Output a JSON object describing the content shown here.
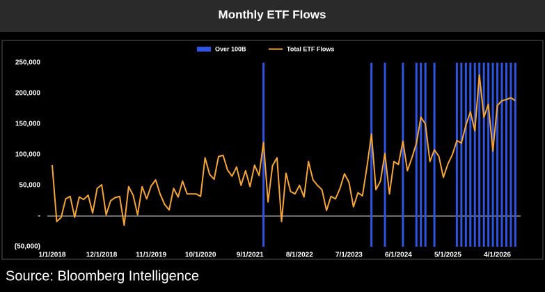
{
  "chart_data": {
    "type": "combo",
    "title": "Monthly ETF Flows",
    "source": "Source: Bloomberg Intelligence",
    "categories": [
      "1/1/2018",
      null,
      null,
      null,
      null,
      null,
      null,
      null,
      null,
      null,
      null,
      "12/1/2018",
      null,
      null,
      null,
      null,
      null,
      null,
      null,
      null,
      null,
      null,
      "11/1/2019",
      null,
      null,
      null,
      null,
      null,
      null,
      null,
      null,
      null,
      null,
      "10/1/2020",
      null,
      null,
      null,
      null,
      null,
      null,
      null,
      null,
      null,
      null,
      "9/1/2021",
      null,
      null,
      null,
      null,
      null,
      null,
      null,
      null,
      null,
      null,
      "8/1/2022",
      null,
      null,
      null,
      null,
      null,
      null,
      null,
      null,
      null,
      null,
      "7/1/2023",
      null,
      null,
      null,
      null,
      null,
      null,
      null,
      null,
      null,
      null,
      "6/1/2024",
      null,
      null,
      null,
      null,
      null,
      null,
      null,
      null,
      null,
      null,
      "5/1/2025",
      null,
      null,
      null,
      null,
      null,
      null,
      null,
      null,
      null,
      null,
      "4/1/2026",
      null,
      null,
      null,
      null
    ],
    "series": [
      {
        "name": "Over 100B",
        "type": "bar",
        "color": "#2f55e0",
        "values": [
          null,
          null,
          null,
          null,
          null,
          null,
          null,
          null,
          null,
          null,
          null,
          null,
          null,
          null,
          null,
          null,
          null,
          null,
          null,
          null,
          null,
          null,
          null,
          null,
          null,
          null,
          null,
          null,
          null,
          null,
          null,
          null,
          null,
          null,
          null,
          null,
          null,
          null,
          null,
          null,
          null,
          null,
          null,
          null,
          null,
          null,
          null,
          250000,
          null,
          null,
          null,
          null,
          null,
          null,
          null,
          null,
          null,
          null,
          null,
          null,
          null,
          null,
          null,
          null,
          null,
          null,
          null,
          null,
          null,
          null,
          null,
          250000,
          null,
          null,
          250000,
          null,
          null,
          null,
          250000,
          null,
          null,
          250000,
          250000,
          250000,
          null,
          250000,
          null,
          null,
          null,
          null,
          250000,
          250000,
          250000,
          250000,
          250000,
          250000,
          250000,
          250000,
          250000,
          250000,
          250000,
          250000,
          250000,
          250000
        ]
      },
      {
        "name": "Total ETF Flows",
        "type": "line",
        "color": "#f5a53a",
        "values": [
          83000,
          -9000,
          -2000,
          28000,
          32000,
          -2000,
          31000,
          27000,
          34000,
          5000,
          45000,
          51000,
          2000,
          25000,
          30000,
          32000,
          -15000,
          48000,
          34000,
          2000,
          48000,
          28000,
          49000,
          59000,
          36000,
          19000,
          10000,
          45000,
          31000,
          57000,
          36000,
          36000,
          36000,
          32000,
          95000,
          68000,
          60000,
          97000,
          99000,
          75000,
          65000,
          80000,
          50000,
          74000,
          48000,
          83000,
          66000,
          120000,
          23000,
          82000,
          95000,
          -9000,
          70000,
          40000,
          36000,
          50000,
          31000,
          89000,
          59000,
          50000,
          43000,
          9000,
          32000,
          28000,
          45000,
          69000,
          55000,
          15000,
          38000,
          33000,
          80000,
          134000,
          43000,
          57000,
          102000,
          36000,
          89000,
          84000,
          122000,
          74000,
          95000,
          119000,
          161000,
          150000,
          89000,
          108000,
          97000,
          63000,
          85000,
          100000,
          123000,
          119000,
          148000,
          170000,
          139000,
          230000,
          161000,
          182000,
          106000,
          180000,
          188000,
          190000,
          193000,
          188000
        ]
      }
    ],
    "ylim": [
      -50000,
      250000
    ],
    "yticks": [
      {
        "value": -50000,
        "label": "(50,000)"
      },
      {
        "value": 0,
        "label": "-"
      },
      {
        "value": 50000,
        "label": "50,000"
      },
      {
        "value": 100000,
        "label": "100,000"
      },
      {
        "value": 150000,
        "label": "150,000"
      },
      {
        "value": 200000,
        "label": "200,000"
      },
      {
        "value": 250000,
        "label": "250,000"
      }
    ]
  }
}
